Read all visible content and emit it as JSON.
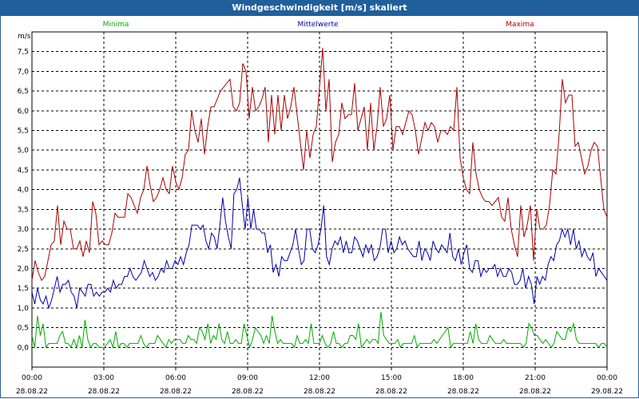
{
  "window": {
    "title": "Windgeschwindigkeit [m/s] skaliert"
  },
  "chart_data": {
    "type": "line",
    "title": "Windgeschwindigkeit [m/s] skaliert",
    "ylabel": "m/s",
    "ylim": [
      -0.5,
      8.0
    ],
    "y_ticks": [
      "0,0",
      "0,5",
      "1,0",
      "1,5",
      "2,0",
      "2,5",
      "3,0",
      "3,5",
      "4,0",
      "4,5",
      "5,0",
      "5,5",
      "6,0",
      "6,5",
      "7,0",
      "7,5"
    ],
    "x_time_ticks": [
      "00:00",
      "03:00",
      "06:00",
      "09:00",
      "12:00",
      "15:00",
      "18:00",
      "21:00",
      "00:00"
    ],
    "x_date_ticks": [
      "28.08.22",
      "28.08.22",
      "28.08.22",
      "28.08.22",
      "28.08.22",
      "28.08.22",
      "28.08.22",
      "28.08.22",
      "29.08.22"
    ],
    "grid": true,
    "x_start": "28.08.22 00:00",
    "x_end": "29.08.22 00:00",
    "series": [
      {
        "name": "Minima",
        "color": "#00aa00",
        "values": [
          0.3,
          0.0,
          0.8,
          0.3,
          0.6,
          0.0,
          0.1,
          0.1,
          0.1,
          0.1,
          0.3,
          0.4,
          0.1,
          0.1,
          0.0,
          0.2,
          0.0,
          0.3,
          0.0,
          0.7,
          0.2,
          0.0,
          0.1,
          0.1,
          0.0,
          0.0,
          0.0,
          0.1,
          0.2,
          0.0,
          0.4,
          0.0,
          0.1,
          0.1,
          0.0,
          0.1,
          0.1,
          0.1,
          0.1,
          0.3,
          0.1,
          0.0,
          0.1,
          0.1,
          0.1,
          0.3,
          0.2,
          0.1,
          0.0,
          0.2,
          0.1,
          0.2,
          0.2,
          0.2,
          0.1,
          0.1,
          0.3,
          0.2,
          0.2,
          0.1,
          0.5,
          0.4,
          0.2,
          0.6,
          0.1,
          0.3,
          0.2,
          0.6,
          0.2,
          0.1,
          0.4,
          0.1,
          0.1,
          0.2,
          0.1,
          0.1,
          0.6,
          0.3,
          0.0,
          0.2,
          0.5,
          0.4,
          0.3,
          0.1,
          0.3,
          0.1,
          0.8,
          0.4,
          0.1,
          0.2,
          0.1,
          0.1,
          0.1,
          0.1,
          0.0,
          0.3,
          0.1,
          0.1,
          0.2,
          0.1,
          0.6,
          0.1,
          0.1,
          0.1,
          0.3,
          0.1,
          0.0,
          0.1,
          0.4,
          0.1,
          0.1,
          0.0,
          0.1,
          0.1,
          0.3,
          0.3,
          0.2,
          0.6,
          0.0,
          0.1,
          0.2,
          0.1,
          0.2,
          0.2,
          0.1,
          0.9,
          0.3,
          0.2,
          0.1,
          0.1,
          0.1,
          0.2,
          0.0,
          0.1,
          0.1,
          0.1,
          0.1,
          0.3,
          0.0,
          0.1,
          0.1,
          0.1,
          0.1,
          0.1,
          0.2,
          0.1,
          0.2,
          0.3,
          0.4,
          0.5,
          0.0,
          0.1,
          0.1,
          0.1,
          0.1,
          0.1,
          0.1,
          0.4,
          0.1,
          0.6,
          0.2,
          0.1,
          0.1,
          0.1,
          0.3,
          0.2,
          0.1,
          0.1,
          0.1,
          0.2,
          0.1,
          0.1,
          0.1,
          0.1,
          0.1,
          0.1,
          0.0,
          0.1,
          0.6,
          0.5,
          0.3,
          0.3,
          0.2,
          0.1,
          0.2,
          0.1,
          0.0,
          0.1,
          0.4,
          0.3,
          0.2,
          0.2,
          0.5,
          0.4,
          0.6,
          0.2,
          0.1,
          0.1,
          0.1,
          0.1,
          0.1,
          0.1,
          0.1,
          0.0,
          0.1,
          0.1,
          0.0
        ]
      },
      {
        "name": "Mittelwerte",
        "color": "#0000aa",
        "values": [
          1.4,
          1.1,
          1.5,
          1.2,
          1.1,
          1.3,
          1.0,
          1.2,
          1.5,
          1.8,
          1.4,
          1.6,
          1.6,
          1.7,
          1.4,
          1.3,
          1.0,
          1.5,
          1.4,
          1.3,
          1.6,
          1.6,
          1.3,
          1.4,
          1.3,
          1.4,
          1.4,
          1.5,
          1.4,
          1.7,
          1.5,
          1.6,
          1.6,
          1.8,
          1.8,
          2.0,
          1.8,
          1.7,
          1.8,
          1.9,
          2.2,
          2.0,
          1.8,
          1.9,
          1.7,
          1.8,
          2.0,
          1.9,
          2.2,
          2.0,
          2.0,
          2.2,
          2.1,
          2.3,
          2.1,
          2.4,
          2.6,
          3.1,
          3.1,
          3.1,
          3.0,
          3.1,
          2.7,
          2.5,
          2.9,
          2.8,
          2.5,
          3.1,
          3.8,
          3.2,
          2.8,
          2.5,
          3.9,
          4.0,
          4.3,
          3.6,
          3.0,
          3.8,
          3.0,
          3.5,
          3.0,
          3.0,
          2.9,
          2.9,
          2.4,
          2.6,
          1.9,
          2.1,
          1.8,
          2.3,
          2.2,
          2.2,
          2.4,
          2.6,
          3.0,
          2.5,
          2.1,
          2.2,
          3.0,
          3.0,
          2.5,
          2.4,
          2.6,
          3.0,
          3.6,
          2.3,
          2.1,
          2.5,
          2.7,
          2.6,
          2.8,
          2.4,
          2.7,
          2.4,
          2.4,
          2.8,
          2.7,
          2.5,
          2.3,
          2.6,
          2.4,
          2.6,
          2.2,
          2.3,
          2.5,
          3.0,
          3.0,
          2.4,
          2.7,
          2.4,
          2.5,
          2.8,
          2.6,
          2.7,
          2.5,
          2.4,
          2.3,
          2.3,
          2.7,
          2.2,
          2.5,
          2.4,
          2.2,
          2.7,
          2.5,
          2.4,
          2.6,
          2.5,
          2.4,
          2.9,
          2.3,
          2.2,
          2.5,
          2.1,
          2.4,
          2.6,
          2.0,
          1.9,
          2.2,
          2.2,
          1.8,
          2.0,
          1.9,
          2.0,
          2.0,
          2.1,
          1.8,
          2.0,
          1.8,
          1.8,
          2.0,
          1.9,
          1.6,
          1.6,
          1.7,
          2.0,
          1.5,
          1.8,
          1.6,
          1.1,
          1.8,
          1.6,
          1.8,
          1.7,
          2.1,
          2.3,
          2.2,
          2.6,
          2.7,
          3.0,
          2.8,
          3.0,
          2.6,
          3.0,
          2.5,
          2.7,
          2.3,
          2.5,
          2.3,
          2.2,
          2.4,
          1.8,
          2.0,
          1.9,
          1.8,
          1.7
        ]
      },
      {
        "name": "Maxima",
        "color": "#aa0000",
        "values": [
          1.7,
          2.2,
          1.9,
          1.7,
          1.8,
          2.2,
          2.6,
          2.7,
          3.6,
          2.6,
          3.2,
          3.0,
          3.0,
          2.5,
          2.5,
          2.7,
          2.3,
          2.7,
          2.4,
          3.7,
          3.4,
          2.6,
          2.7,
          2.6,
          2.6,
          2.9,
          3.4,
          3.3,
          3.3,
          3.3,
          3.9,
          3.8,
          3.6,
          3.4,
          3.8,
          4.0,
          4.6,
          4.1,
          3.7,
          3.8,
          4.0,
          4.3,
          4.0,
          3.9,
          4.6,
          4.2,
          4.0,
          4.3,
          4.9,
          5.0,
          6.0,
          5.5,
          5.2,
          5.8,
          4.9,
          5.6,
          6.1,
          6.1,
          6.3,
          6.5,
          6.6,
          6.7,
          6.8,
          6.1,
          6.0,
          6.2,
          7.2,
          7.0,
          5.8,
          6.6,
          6.0,
          6.1,
          6.3,
          6.6,
          5.2,
          6.4,
          5.4,
          6.4,
          5.5,
          6.4,
          5.8,
          6.1,
          6.6,
          5.9,
          5.2,
          4.5,
          5.5,
          4.8,
          5.4,
          5.6,
          6.6,
          7.6,
          6.0,
          6.8,
          4.7,
          5.2,
          5.4,
          6.2,
          5.8,
          5.9,
          5.9,
          6.7,
          5.5,
          5.8,
          6.1,
          5.0,
          6.2,
          5.0,
          5.6,
          6.6,
          5.6,
          5.8,
          6.4,
          5.0,
          5.6,
          5.6,
          5.4,
          5.7,
          6.0,
          5.9,
          5.5,
          4.9,
          5.3,
          5.7,
          5.5,
          5.7,
          5.6,
          5.2,
          5.5,
          5.5,
          5.4,
          5.6,
          5.5,
          6.6,
          4.8,
          4.3,
          4.0,
          3.9,
          5.2,
          4.4,
          4.0,
          3.8,
          3.7,
          3.7,
          3.6,
          3.7,
          3.8,
          3.3,
          3.2,
          3.8,
          3.0,
          2.6,
          2.3,
          3.6,
          2.8,
          3.1,
          3.6,
          2.2,
          3.5,
          3.0,
          3.0,
          3.1,
          3.6,
          4.5,
          4.4,
          5.4,
          6.8,
          6.2,
          6.4,
          6.4,
          5.1,
          5.2,
          4.8,
          4.4,
          4.6,
          5.0,
          5.2,
          5.1,
          4.3,
          3.5,
          3.3
        ]
      }
    ]
  }
}
